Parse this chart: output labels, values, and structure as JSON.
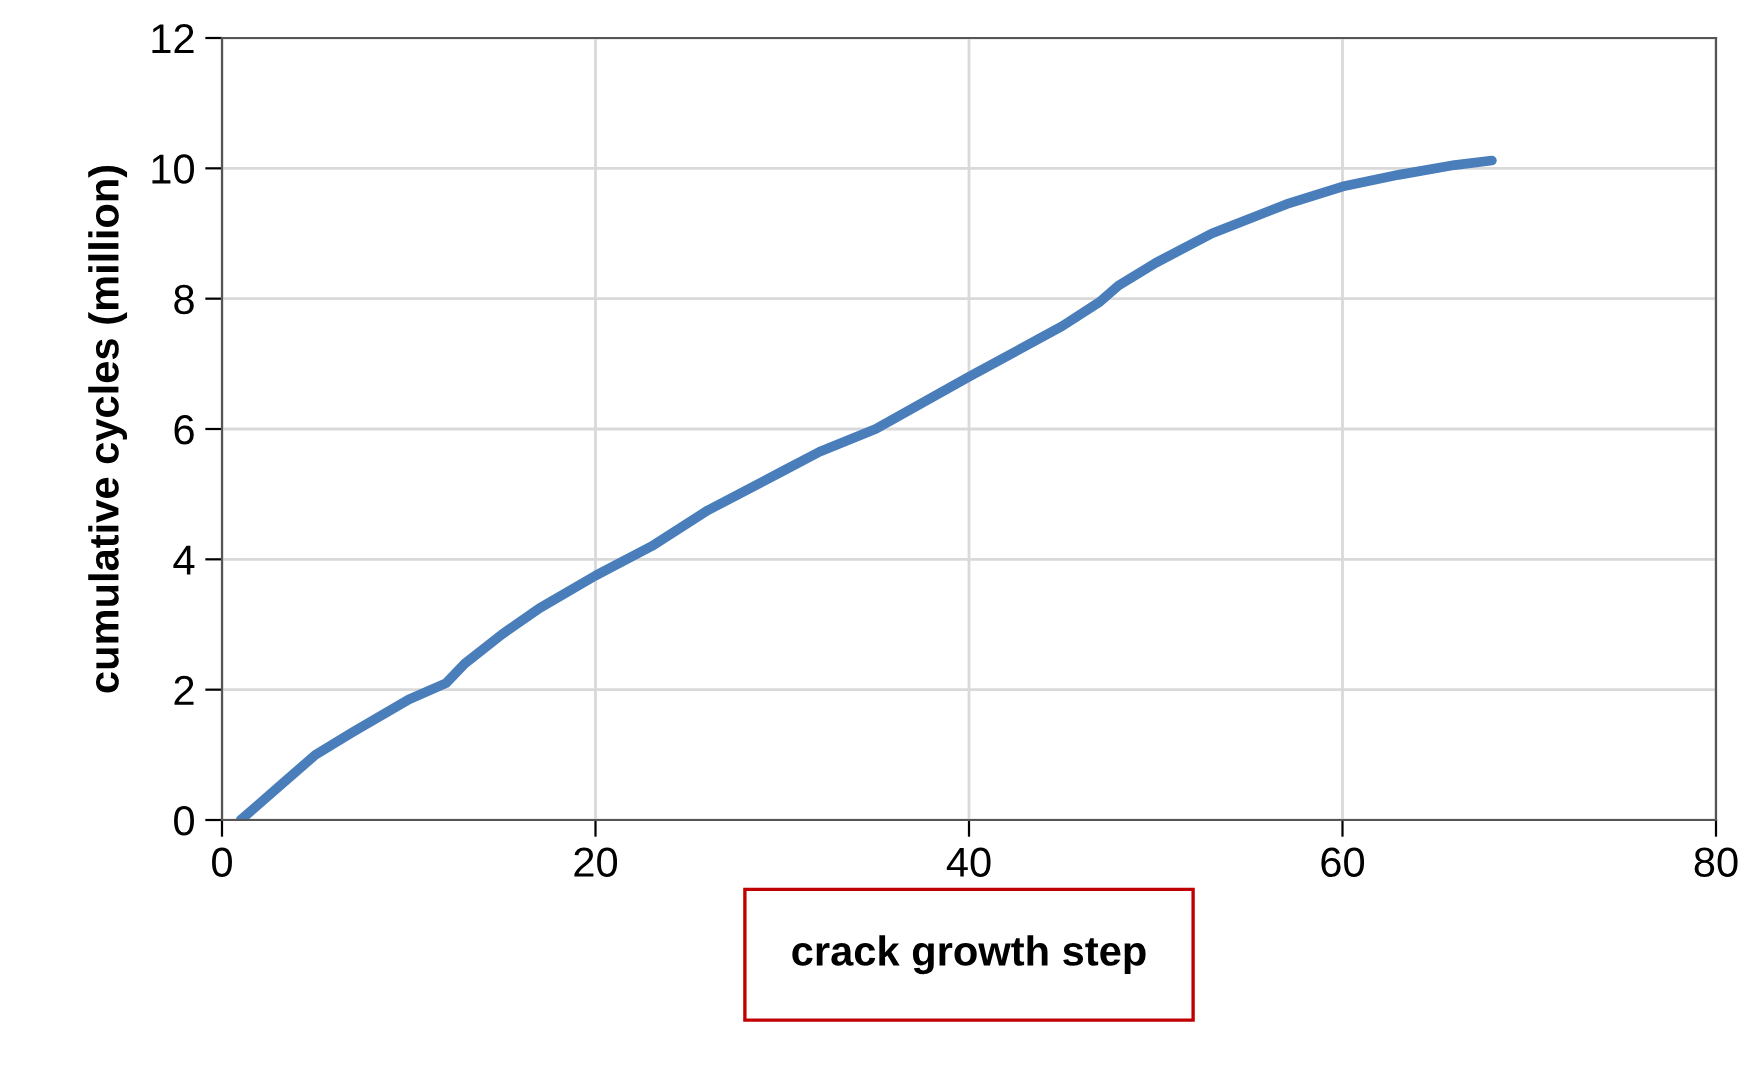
{
  "chart_data": {
    "type": "line",
    "xlabel": "crack growth step",
    "ylabel": "cumulative cycles (million)",
    "x": [
      1,
      3,
      5,
      7,
      10,
      12,
      13,
      15,
      17,
      20,
      23,
      26,
      30,
      32,
      35,
      40,
      45,
      47,
      48,
      50,
      53,
      57,
      60,
      63,
      66,
      68
    ],
    "series": [
      {
        "color": "#4a7ebb",
        "values": [
          0,
          0.5,
          1.0,
          1.35,
          1.85,
          2.1,
          2.4,
          2.85,
          3.25,
          3.75,
          4.2,
          4.75,
          5.35,
          5.65,
          6.0,
          6.8,
          7.58,
          7.95,
          8.2,
          8.55,
          9.0,
          9.45,
          9.72,
          9.9,
          10.05,
          10.12
        ]
      }
    ],
    "xlim": [
      0,
      80
    ],
    "xticks": [
      0,
      20,
      40,
      60,
      80
    ],
    "ylim": [
      0,
      12
    ],
    "yticks": [
      0,
      2,
      4,
      6,
      8,
      10,
      12
    ],
    "grid": true,
    "marker": "none",
    "line_style": "solid"
  }
}
